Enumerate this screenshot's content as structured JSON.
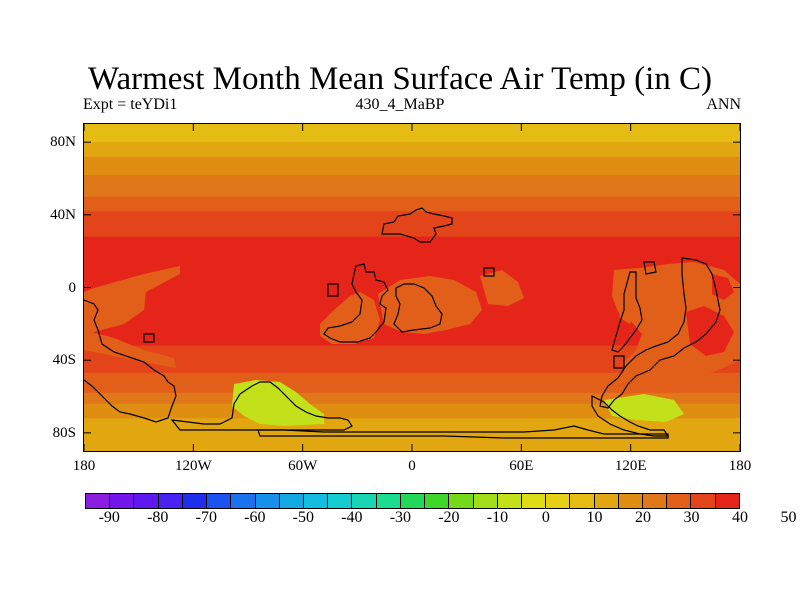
{
  "title": "Warmest Month Mean Surface Air Temp (in C)",
  "subtitle_left": "Expt = teYDi1",
  "subtitle_center": "430_4_MaBP",
  "subtitle_right": "ANN",
  "lat_labels": [
    "80N",
    "40N",
    "0",
    "40S",
    "80S"
  ],
  "lon_labels": [
    "180",
    "120W",
    "60W",
    "0",
    "60E",
    "120E",
    "180"
  ],
  "colorbar_labels": [
    "-90",
    "-80",
    "-70",
    "-60",
    "-50",
    "-40",
    "-30",
    "-20",
    "-10",
    "0",
    "10",
    "20",
    "30",
    "40",
    "50"
  ],
  "colorbar_colors": [
    "#8b1fe0",
    "#7417ea",
    "#5f18f0",
    "#4a22f3",
    "#1f2fee",
    "#1a53f0",
    "#1a72ef",
    "#1791ea",
    "#14a9e2",
    "#14bde0",
    "#15cdd0",
    "#18d6b4",
    "#1cdc8f",
    "#22d859",
    "#3ed62a",
    "#74d91b",
    "#9fde18",
    "#c3e11a",
    "#dddc17",
    "#e6d017",
    "#e4bc14",
    "#e2a611",
    "#df8e12",
    "#e07718",
    "#e25f1a",
    "#e44419",
    "#e5251a"
  ],
  "chart_data": {
    "type": "heatmap",
    "title": "Warmest Month Mean Surface Air Temp (in C)",
    "units": "C",
    "experiment": "teYDi1",
    "period": "430_4_MaBP",
    "season": "ANN",
    "x_range_deg": [
      -180,
      180
    ],
    "y_range_deg": [
      -90,
      90
    ],
    "contour_levels": [
      -95,
      -90,
      -85,
      -80,
      -75,
      -70,
      -65,
      -60,
      -55,
      -50,
      -45,
      -40,
      -35,
      -30,
      -25,
      -20,
      -15,
      -10,
      -5,
      0,
      5,
      10,
      15,
      20,
      25,
      30,
      35,
      40,
      45,
      50,
      55
    ],
    "zonal_bands": [
      {
        "lat_from": 90,
        "lat_to": 80,
        "level": 0
      },
      {
        "lat_from": 80,
        "lat_to": 72,
        "level": 5
      },
      {
        "lat_from": 72,
        "lat_to": 62,
        "level": 10
      },
      {
        "lat_from": 62,
        "lat_to": 50,
        "level": 15
      },
      {
        "lat_from": 50,
        "lat_to": 42,
        "level": 20
      },
      {
        "lat_from": 42,
        "lat_to": 28,
        "level": 25
      },
      {
        "lat_from": 28,
        "lat_to": -32,
        "level": 30
      },
      {
        "lat_from": -32,
        "lat_to": -47,
        "level": 25
      },
      {
        "lat_from": -47,
        "lat_to": -58,
        "level": 20
      },
      {
        "lat_from": -58,
        "lat_to": -64,
        "level": 15
      },
      {
        "lat_from": -64,
        "lat_to": -72,
        "level": 10
      },
      {
        "lat_from": -72,
        "lat_to": -90,
        "level": 5
      }
    ]
  }
}
